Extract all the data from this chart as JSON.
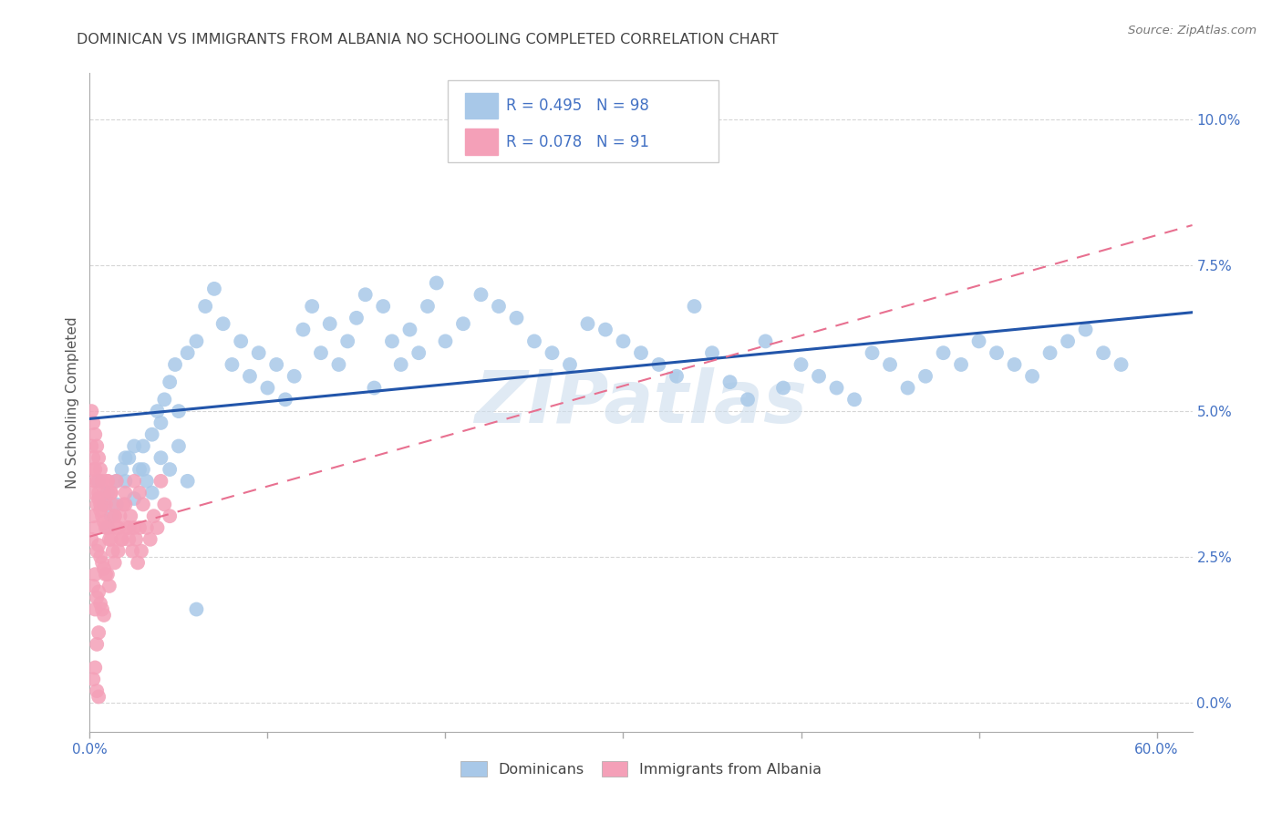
{
  "title": "DOMINICAN VS IMMIGRANTS FROM ALBANIA NO SCHOOLING COMPLETED CORRELATION CHART",
  "source": "Source: ZipAtlas.com",
  "ylabel": "No Schooling Completed",
  "xlim": [
    0.0,
    0.62
  ],
  "ylim": [
    -0.005,
    0.108
  ],
  "dominican_R": 0.495,
  "dominican_N": 98,
  "albania_R": 0.078,
  "albania_N": 91,
  "blue_scatter_color": "#a8c8e8",
  "pink_scatter_color": "#f4a0b8",
  "blue_line_color": "#2255aa",
  "pink_line_color": "#e87090",
  "background_color": "#ffffff",
  "grid_color": "#cccccc",
  "title_color": "#444444",
  "axis_tick_color": "#4472c4",
  "legend_text_color": "#4472c4",
  "watermark_text": "ZIPatlas",
  "watermark_color": "#ccdded",
  "dominican_x": [
    0.005,
    0.008,
    0.01,
    0.012,
    0.015,
    0.018,
    0.02,
    0.022,
    0.025,
    0.028,
    0.03,
    0.032,
    0.035,
    0.038,
    0.04,
    0.042,
    0.045,
    0.048,
    0.05,
    0.055,
    0.06,
    0.065,
    0.07,
    0.075,
    0.08,
    0.085,
    0.09,
    0.095,
    0.1,
    0.105,
    0.11,
    0.115,
    0.12,
    0.125,
    0.13,
    0.135,
    0.14,
    0.145,
    0.15,
    0.155,
    0.16,
    0.165,
    0.17,
    0.175,
    0.18,
    0.185,
    0.19,
    0.195,
    0.2,
    0.21,
    0.22,
    0.23,
    0.24,
    0.25,
    0.26,
    0.27,
    0.28,
    0.29,
    0.3,
    0.31,
    0.32,
    0.33,
    0.34,
    0.35,
    0.36,
    0.37,
    0.38,
    0.39,
    0.4,
    0.41,
    0.42,
    0.43,
    0.44,
    0.45,
    0.46,
    0.47,
    0.48,
    0.49,
    0.5,
    0.51,
    0.52,
    0.53,
    0.54,
    0.55,
    0.56,
    0.57,
    0.01,
    0.015,
    0.02,
    0.025,
    0.03,
    0.035,
    0.04,
    0.045,
    0.05,
    0.055,
    0.06,
    0.58
  ],
  "dominican_y": [
    0.038,
    0.034,
    0.036,
    0.032,
    0.034,
    0.04,
    0.038,
    0.042,
    0.035,
    0.04,
    0.044,
    0.038,
    0.046,
    0.05,
    0.048,
    0.052,
    0.055,
    0.058,
    0.05,
    0.06,
    0.062,
    0.068,
    0.071,
    0.065,
    0.058,
    0.062,
    0.056,
    0.06,
    0.054,
    0.058,
    0.052,
    0.056,
    0.064,
    0.068,
    0.06,
    0.065,
    0.058,
    0.062,
    0.066,
    0.07,
    0.054,
    0.068,
    0.062,
    0.058,
    0.064,
    0.06,
    0.068,
    0.072,
    0.062,
    0.065,
    0.07,
    0.068,
    0.066,
    0.062,
    0.06,
    0.058,
    0.065,
    0.064,
    0.062,
    0.06,
    0.058,
    0.056,
    0.068,
    0.06,
    0.055,
    0.052,
    0.062,
    0.054,
    0.058,
    0.056,
    0.054,
    0.052,
    0.06,
    0.058,
    0.054,
    0.056,
    0.06,
    0.058,
    0.062,
    0.06,
    0.058,
    0.056,
    0.06,
    0.062,
    0.064,
    0.06,
    0.03,
    0.038,
    0.042,
    0.044,
    0.04,
    0.036,
    0.042,
    0.04,
    0.044,
    0.038,
    0.016,
    0.058
  ],
  "albania_x": [
    0.001,
    0.001,
    0.002,
    0.002,
    0.002,
    0.003,
    0.003,
    0.003,
    0.003,
    0.004,
    0.004,
    0.004,
    0.004,
    0.005,
    0.005,
    0.005,
    0.005,
    0.006,
    0.006,
    0.006,
    0.007,
    0.007,
    0.007,
    0.008,
    0.008,
    0.008,
    0.009,
    0.009,
    0.01,
    0.01,
    0.01,
    0.011,
    0.011,
    0.012,
    0.012,
    0.013,
    0.013,
    0.014,
    0.014,
    0.015,
    0.015,
    0.016,
    0.017,
    0.018,
    0.019,
    0.02,
    0.021,
    0.022,
    0.023,
    0.024,
    0.025,
    0.026,
    0.027,
    0.028,
    0.029,
    0.03,
    0.032,
    0.034,
    0.036,
    0.038,
    0.04,
    0.042,
    0.045,
    0.001,
    0.001,
    0.002,
    0.002,
    0.003,
    0.003,
    0.004,
    0.004,
    0.005,
    0.005,
    0.006,
    0.006,
    0.007,
    0.008,
    0.009,
    0.01,
    0.012,
    0.014,
    0.016,
    0.018,
    0.02,
    0.022,
    0.025,
    0.028,
    0.002,
    0.003,
    0.004,
    0.005
  ],
  "albania_y": [
    0.036,
    0.028,
    0.04,
    0.032,
    0.02,
    0.038,
    0.03,
    0.022,
    0.016,
    0.034,
    0.026,
    0.018,
    0.01,
    0.035,
    0.027,
    0.019,
    0.012,
    0.033,
    0.025,
    0.017,
    0.032,
    0.024,
    0.016,
    0.031,
    0.023,
    0.015,
    0.03,
    0.022,
    0.038,
    0.03,
    0.022,
    0.028,
    0.02,
    0.036,
    0.028,
    0.034,
    0.026,
    0.032,
    0.024,
    0.038,
    0.03,
    0.026,
    0.032,
    0.028,
    0.034,
    0.036,
    0.03,
    0.028,
    0.032,
    0.026,
    0.03,
    0.028,
    0.024,
    0.03,
    0.026,
    0.034,
    0.03,
    0.028,
    0.032,
    0.03,
    0.038,
    0.034,
    0.032,
    0.05,
    0.044,
    0.048,
    0.042,
    0.046,
    0.04,
    0.044,
    0.038,
    0.042,
    0.036,
    0.04,
    0.034,
    0.038,
    0.036,
    0.034,
    0.038,
    0.036,
    0.032,
    0.03,
    0.028,
    0.034,
    0.03,
    0.038,
    0.036,
    0.004,
    0.006,
    0.002,
    0.001
  ]
}
